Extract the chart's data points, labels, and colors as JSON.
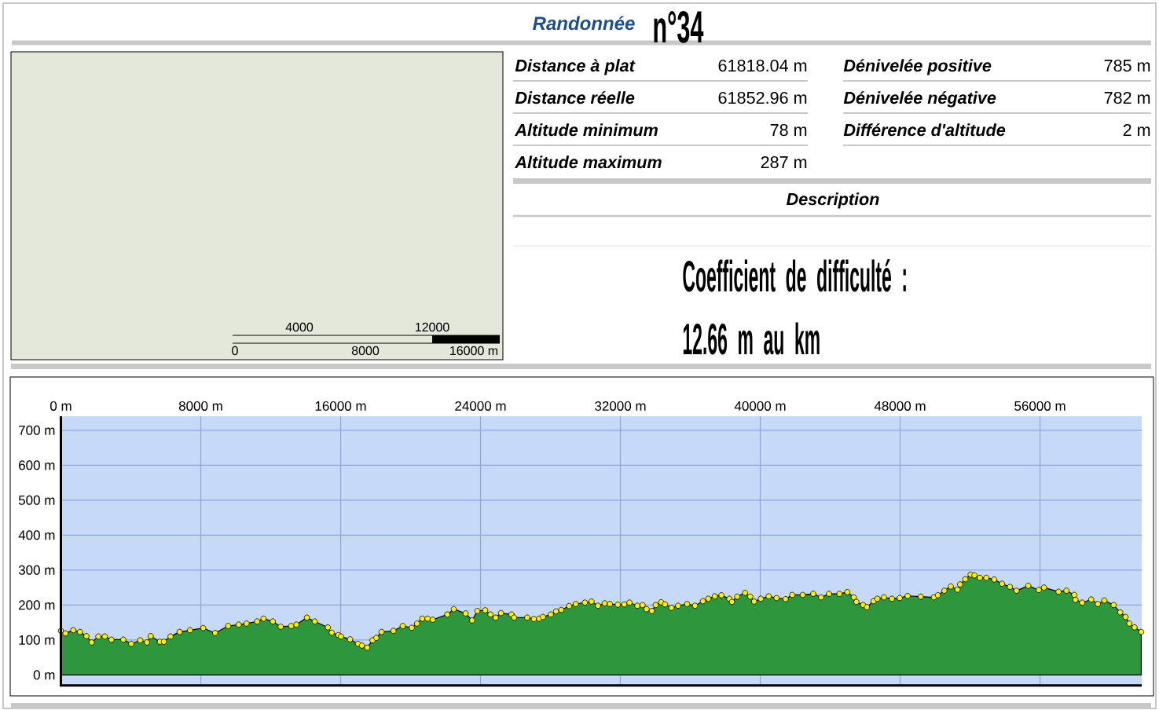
{
  "chart_data": {
    "type": "area",
    "title": "Randonnée",
    "subtitle": "n°34",
    "annotations": [
      "Distance à plat",
      "61818.04 m",
      "Distance réelle",
      "61852.96 m",
      "Altitude minimum",
      "78 m",
      "Altitude maximum",
      "287 m",
      "Dénivelée positive",
      "785 m",
      "Dénivelée négative",
      "782 m",
      "Différence d'altitude",
      "2 m",
      "Description",
      "Coefficient de difficulté :",
      "12.66 m au km",
      "4000",
      "12000",
      "0",
      "8000",
      "16000 m"
    ],
    "x": [
      0,
      260,
      710,
      1090,
      1460,
      1760,
      2140,
      2510,
      2890,
      3570,
      4020,
      4540,
      4920,
      5140,
      5660,
      5890,
      6270,
      6790,
      7390,
      8140,
      8820,
      9570,
      10170,
      10620,
      11220,
      11590,
      12120,
      12570,
      13170,
      13470,
      14070,
      14520,
      15270,
      15490,
      15870,
      16020,
      16540,
      16990,
      17220,
      17520,
      17820,
      18040,
      18340,
      19020,
      19550,
      20070,
      20370,
      20670,
      20970,
      21270,
      22100,
      22470,
      23150,
      23520,
      23820,
      24270,
      24570,
      24870,
      25170,
      25770,
      25920,
      26670,
      27050,
      27350,
      27570,
      28020,
      28320,
      28620,
      29070,
      29450,
      29970,
      30350,
      30720,
      31100,
      31400,
      31850,
      32220,
      32520,
      32970,
      33270,
      33500,
      33800,
      34020,
      34330,
      34550,
      34920,
      35300,
      35820,
      36270,
      36720,
      37030,
      37400,
      37780,
      38230,
      38380,
      38680,
      39130,
      39430,
      39650,
      40030,
      40480,
      40930,
      41450,
      41830,
      42430,
      43030,
      43480,
      43930,
      44530,
      44980,
      45350,
      45500,
      45880,
      46100,
      46480,
      46700,
      47080,
      47530,
      47980,
      48430,
      49180,
      49930,
      50160,
      50530,
      50900,
      51280,
      51430,
      51730,
      52030,
      52250,
      52560,
      52930,
      53380,
      53830,
      54280,
      54660,
      55330,
      55930,
      56230,
      57060,
      57510,
      57960,
      58030,
      58410,
      58930,
      59310,
      59680,
      60210,
      60590,
      60890,
      61110,
      61410,
      61790
    ],
    "series": [
      {
        "color": "#2e963c",
        "values": [
          126,
          119,
          128,
          123,
          111,
          93,
          110,
          110,
          101,
          101,
          89,
          99,
          93,
          111,
          95,
          95,
          110,
          123,
          128,
          134,
          120,
          140,
          144,
          147,
          153,
          161,
          153,
          138,
          140,
          144,
          164,
          153,
          136,
          121,
          114,
          110,
          102,
          89,
          84,
          78,
          99,
          106,
          123,
          126,
          140,
          135,
          147,
          161,
          161,
          158,
          173,
          188,
          176,
          156,
          183,
          185,
          173,
          164,
          177,
          173,
          164,
          164,
          160,
          161,
          166,
          173,
          182,
          186,
          197,
          203,
          207,
          210,
          198,
          205,
          203,
          201,
          202,
          207,
          198,
          200,
          188,
          183,
          200,
          208,
          202,
          192,
          198,
          203,
          198,
          211,
          218,
          225,
          228,
          218,
          209,
          224,
          235,
          224,
          210,
          218,
          225,
          220,
          217,
          229,
          229,
          232,
          222,
          232,
          232,
          237,
          222,
          209,
          200,
          194,
          211,
          218,
          222,
          218,
          220,
          226,
          224,
          222,
          228,
          241,
          253,
          244,
          259,
          274,
          287,
          285,
          278,
          278,
          273,
          261,
          252,
          241,
          255,
          243,
          250,
          238,
          241,
          229,
          215,
          207,
          216,
          203,
          213,
          200,
          179,
          166,
          147,
          136,
          123
        ]
      }
    ],
    "xlim": [
      0,
      61818
    ],
    "ylim": [
      -30,
      740
    ],
    "xticks": [
      {
        "value": 0,
        "label": "0 m"
      },
      {
        "value": 8000,
        "label": "8000 m"
      },
      {
        "value": 16000,
        "label": "16000 m"
      },
      {
        "value": 24000,
        "label": "24000 m"
      },
      {
        "value": 32000,
        "label": "32000 m"
      },
      {
        "value": 40000,
        "label": "40000 m"
      },
      {
        "value": 48000,
        "label": "48000 m"
      },
      {
        "value": 56000,
        "label": "56000 m"
      }
    ],
    "yticks": [
      {
        "value": 0,
        "label": "0 m"
      },
      {
        "value": 100,
        "label": "100 m"
      },
      {
        "value": 200,
        "label": "200 m"
      },
      {
        "value": 300,
        "label": "300 m"
      },
      {
        "value": 400,
        "label": "400 m"
      },
      {
        "value": 500,
        "label": "500 m"
      },
      {
        "value": 600,
        "label": "600 m"
      },
      {
        "value": 700,
        "label": "700 m"
      }
    ],
    "grid": true,
    "marker": "circle"
  }
}
